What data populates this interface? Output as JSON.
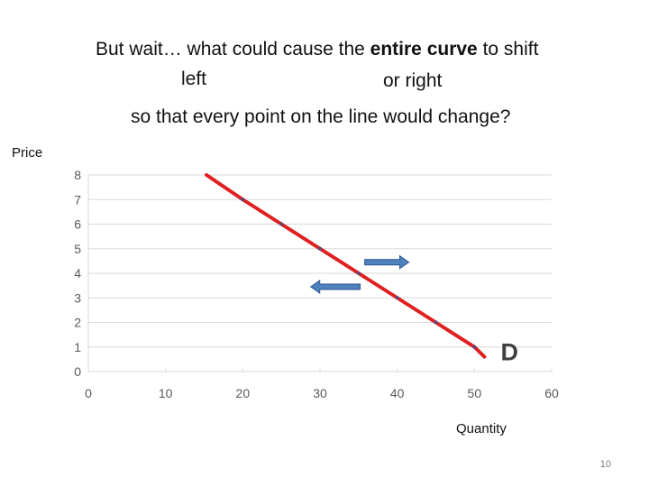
{
  "slide": {
    "line1": {
      "before": "But wait… what could cause the ",
      "bold": "entire curve",
      "after": " to shift"
    },
    "left_word": "left",
    "right_word": "or right",
    "line3": "so that every point on the line would change?",
    "page_number": "10"
  },
  "colors": {
    "curve": "#e02020",
    "arrow_fill": "#4f81bd",
    "arrow_stroke": "#2f5597",
    "grid": "#d9d9d9",
    "tick_text": "#595959"
  },
  "chart_data": {
    "type": "line",
    "ylabel": "Price",
    "xlabel": "Quantity",
    "x_ticks": [
      0,
      10,
      20,
      30,
      40,
      50,
      60
    ],
    "y_ticks": [
      0,
      1,
      2,
      3,
      4,
      5,
      6,
      7,
      8
    ],
    "xlim": [
      0,
      60
    ],
    "ylim": [
      0,
      8
    ],
    "grid": "horizontal",
    "series": [
      {
        "name": "D",
        "x": [
          15.3,
          20,
          25,
          30,
          35,
          40,
          45,
          50,
          51.3
        ],
        "y": [
          8,
          7,
          6,
          5,
          4,
          3,
          2,
          1,
          0.6
        ]
      }
    ],
    "annotations": [
      {
        "text": "",
        "direction": "right",
        "x_from": 35.8,
        "x_to": 41.5,
        "y": 4.45
      },
      {
        "text": "",
        "direction": "left",
        "x_from": 35.2,
        "x_to": 28.8,
        "y": 3.45
      }
    ]
  }
}
